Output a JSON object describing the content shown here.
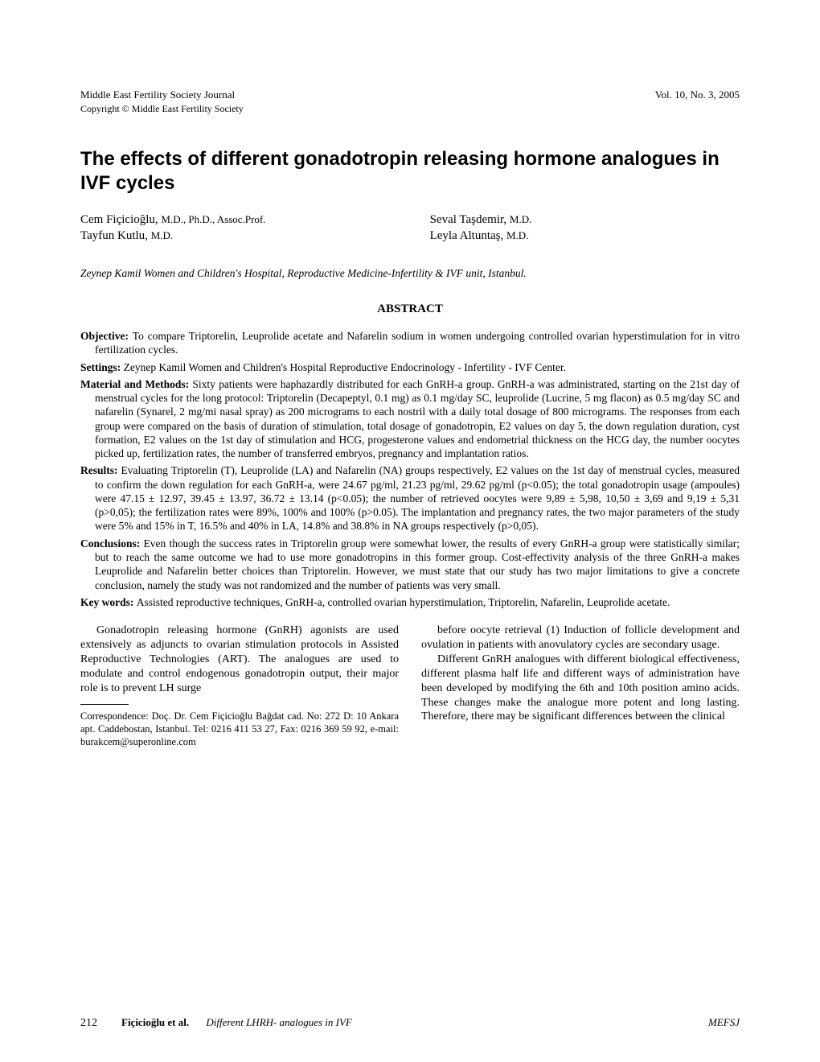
{
  "header": {
    "journal": "Middle East Fertility Society Journal",
    "issue": "Vol. 10, No. 3, 2005",
    "copyright": "Copyright © Middle East Fertility Society"
  },
  "title": "The effects of different gonadotropin releasing hormone analogues in IVF cycles",
  "authors": {
    "row1_left_name": "Cem Fiçicioğlu, ",
    "row1_left_cred": "M.D., Ph.D., Assoc.Prof.",
    "row1_right_name": "Seval Taşdemir, ",
    "row1_right_cred": "M.D.",
    "row2_left_name": "Tayfun Kutlu, ",
    "row2_left_cred": "M.D.",
    "row2_right_name": "Leyla Altuntaş, ",
    "row2_right_cred": "M.D."
  },
  "affiliation": "Zeynep Kamil Women and Children's Hospital, Reproductive Medicine-Infertility & IVF unit, Istanbul.",
  "abstract_heading": "ABSTRACT",
  "abstract": {
    "objective_label": "Objective: ",
    "objective": "To compare Triptorelin, Leuprolide acetate and Nafarelin sodium in women undergoing controlled ovarian hyperstimulation for in vitro fertilization cycles.",
    "settings_label": "Settings: ",
    "settings": "Zeynep Kamil Women and Children's Hospital Reproductive Endocrinology - Infertility - IVF Center.",
    "methods_label": "Material and Methods: ",
    "methods": "Sixty patients were haphazardly distributed for each GnRH-a group. GnRH-a was administrated, starting on the 21st day of menstrual cycles for the long protocol: Triptorelin (Decapeptyl, 0.1 mg) as 0.1 mg/day SC, leuprolide (Lucrine, 5 mg flacon) as 0.5 mg/day SC and nafarelin (Synarel, 2 mg/mi nasal spray) as 200 micrograms to each nostril with a daily total dosage of 800 micrograms. The responses from each group were compared on the basis of duration of stimulation, total dosage of gonadotropin, E2 values on day 5, the down regulation duration, cyst formation, E2 values on the 1st day of stimulation and HCG, progesterone values and endometrial thickness on the HCG day, the number oocytes picked up, fertilization rates, the number of transferred embryos, pregnancy and implantation ratios.",
    "results_label": "Results: ",
    "results": "Evaluating Triptorelin (T), Leuprolide (LA) and Nafarelin (NA) groups respectively, E2 values on the 1st day of menstrual cycles, measured to confirm the down regulation for each GnRH-a, were 24.67 pg/ml, 21.23 pg/ml, 29.62 pg/ml (p<0.05); the total gonadotropin usage (ampoules) were 47.15 ± 12.97, 39.45 ± 13.97, 36.72 ± 13.14 (p<0.05); the number of retrieved oocytes were 9,89 ± 5,98, 10,50 ± 3,69 and 9,19 ± 5,31 (p>0,05); the fertilization rates were 89%, 100% and 100% (p>0.05). The implantation and pregnancy rates, the two major parameters of the study were 5% and 15% in T, 16.5% and 40% in LA, 14.8% and 38.8% in NA groups respectively (p>0,05).",
    "conclusions_label": "Conclusions: ",
    "conclusions": "Even though the success rates in Triptorelin group were somewhat lower, the results of every GnRH-a group were statistically similar; but to reach the same outcome we had to use more gonadotropins in this former group. Cost-effectivity analysis of the three GnRH-a makes Leuprolide and Nafarelin better choices than Triptorelin. However, we must state that our study has two major limitations to give a concrete conclusion, namely the study was not randomized and the number of patients was very small.",
    "keywords_label": "Key words: ",
    "keywords": "Assisted reproductive techniques, GnRH-a, controlled ovarian hyperstimulation, Triptorelin, Nafarelin, Leuprolide acetate."
  },
  "body": {
    "col1_p1": "Gonadotropin releasing hormone (GnRH) agonists are used extensively as adjuncts to ovarian stimulation protocols in Assisted Reproductive Technologies (ART). The analogues are used to modulate and control endogenous gonadotropin output, their major role is to prevent LH surge",
    "correspondence": "Correspondence: Doç. Dr. Cem Fiçicioğlu Bağdat cad. No: 272 D: 10 Ankara apt. Caddebostan, Istanbul. Tel:  0216 411 53 27, Fax: 0216 369 59 92, e-mail: burakcem@superonline.com",
    "col2_p1": "before oocyte retrieval (1) Induction of follicle development and ovulation in patients with anovulatory cycles are secondary usage.",
    "col2_p2": "Different GnRH analogues with different biological effectiveness, different plasma half life and different ways of administration have been developed by modifying the 6th and 10th position amino acids. These changes make the analogue more potent and long lasting. Therefore, there may be significant differences between the clinical"
  },
  "footer": {
    "page": "212",
    "authors": "Fiçicioğlu et al.",
    "title": "Different LHRH- analogues in IVF",
    "journal": "MEFSJ"
  }
}
